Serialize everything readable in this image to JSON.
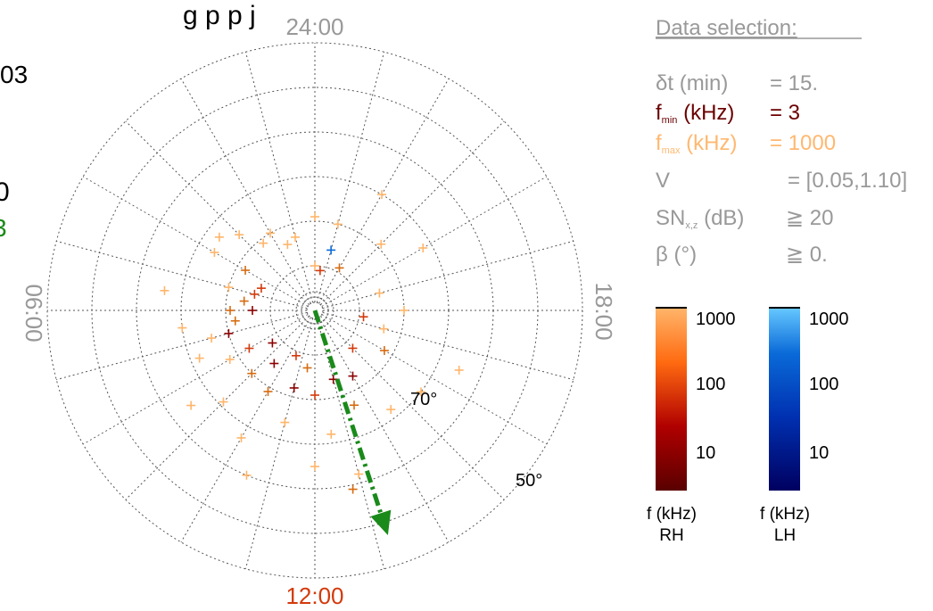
{
  "header": {
    "title_fragment": "g   p p  j",
    "left_fragment_1": "03",
    "left_fragment_2": "0",
    "left_fragment_3": "3"
  },
  "colors": {
    "rh_dark": "#5a0000",
    "rh_mid": "#d33a0c",
    "rh_light": "#ffb56a",
    "lh_dark": "#000060",
    "lh_mid": "#0a6ad8",
    "lh_light": "#66c8ff",
    "fmin_label": "#6b0000",
    "fmax_label": "#ffb870",
    "grey_text": "#999999",
    "arrow": "#1a8a1a",
    "noon_label": "#d33a0c"
  },
  "chart_data": {
    "type": "scatter",
    "projection": "polar dial plot, radius = colatitude",
    "hour_labels": {
      "top": "24:00",
      "left": "06:00",
      "right": "18:00",
      "bottom": "12:00"
    },
    "latitude_labels": [
      "70°",
      "50°"
    ],
    "latitude_circles_deg": [
      80,
      70,
      60,
      50,
      40,
      30
    ],
    "grid": true,
    "points": [
      {
        "x": 24,
        "y": 80,
        "c": "#ffb56a"
      },
      {
        "x": 24,
        "y": 69,
        "c": "#ffb56a"
      },
      {
        "x": 23,
        "y": 70,
        "c": "#ffb56a"
      },
      {
        "x": 22,
        "y": 79,
        "c": "#d66b10"
      },
      {
        "x": 23.5,
        "y": 81,
        "c": "#d33a0c"
      },
      {
        "x": 1,
        "y": 73,
        "c": "#ffb56a"
      },
      {
        "x": 1.5,
        "y": 74,
        "c": "#ffb56a"
      },
      {
        "x": 2,
        "y": 70,
        "c": "#ffb56a"
      },
      {
        "x": 2.5,
        "y": 71,
        "c": "#ffb56a"
      },
      {
        "x": 3,
        "y": 66,
        "c": "#ffb56a"
      },
      {
        "x": 3.5,
        "y": 63,
        "c": "#ffb56a"
      },
      {
        "x": 4,
        "y": 64,
        "c": "#ffb56a"
      },
      {
        "x": 4,
        "y": 72,
        "c": "#d66b10"
      },
      {
        "x": 4.5,
        "y": 77,
        "c": "#d33a0c"
      },
      {
        "x": 5,
        "y": 70,
        "c": "#ffb56a"
      },
      {
        "x": 5,
        "y": 76,
        "c": "#d33a0c"
      },
      {
        "x": 5.5,
        "y": 74,
        "c": "#d66b10"
      },
      {
        "x": 6,
        "y": 71,
        "c": "#d66b10"
      },
      {
        "x": 6,
        "y": 76,
        "c": "#8b0000"
      },
      {
        "x": 6.5,
        "y": 72,
        "c": "#d66b10"
      },
      {
        "x": 7,
        "y": 70,
        "c": "#8b0000"
      },
      {
        "x": 7,
        "y": 66,
        "c": "#ffb56a"
      },
      {
        "x": 7.5,
        "y": 62,
        "c": "#ffb56a"
      },
      {
        "x": 8,
        "y": 73,
        "c": "#d33a0c"
      },
      {
        "x": 8,
        "y": 68,
        "c": "#ffb56a"
      },
      {
        "x": 8.5,
        "y": 78,
        "c": "#8b0000"
      },
      {
        "x": 9,
        "y": 70,
        "c": "#d66b10"
      },
      {
        "x": 9,
        "y": 61,
        "c": "#ffb56a"
      },
      {
        "x": 9.5,
        "y": 75,
        "c": "#8b0000"
      },
      {
        "x": 10,
        "y": 69,
        "c": "#d66b10"
      },
      {
        "x": 10,
        "y": 57,
        "c": "#ffb56a"
      },
      {
        "x": 10.5,
        "y": 79,
        "c": "#d33a0c"
      },
      {
        "x": 11,
        "y": 72,
        "c": "#8b0000"
      },
      {
        "x": 11,
        "y": 64,
        "c": "#ffb56a"
      },
      {
        "x": 11.5,
        "y": 77,
        "c": "#d66b10"
      },
      {
        "x": 12,
        "y": 71,
        "c": "#d33a0c"
      },
      {
        "x": 12,
        "y": 55,
        "c": "#ffb56a"
      },
      {
        "x": 12.5,
        "y": 62,
        "c": "#ffb56a"
      },
      {
        "x": 13,
        "y": 74,
        "c": "#8b0000"
      },
      {
        "x": 13,
        "y": 52,
        "c": "#ffb56a"
      },
      {
        "x": 13.5,
        "y": 67,
        "c": "#d66b10"
      },
      {
        "x": 14,
        "y": 73,
        "c": "#8b0000"
      },
      {
        "x": 14.5,
        "y": 62,
        "c": "#ffb56a"
      },
      {
        "x": 15,
        "y": 78,
        "c": "#d33a0c"
      },
      {
        "x": 15.5,
        "y": 60,
        "c": "#ffb56a"
      },
      {
        "x": 16,
        "y": 72,
        "c": "#d66b10"
      },
      {
        "x": 16.5,
        "y": 55,
        "c": "#ffb56a"
      },
      {
        "x": 17,
        "y": 74,
        "c": "#ffb56a"
      },
      {
        "x": 17.5,
        "y": 79,
        "c": "#d33a0c"
      },
      {
        "x": 18,
        "y": 70,
        "c": "#ffb56a"
      },
      {
        "x": 19,
        "y": 75,
        "c": "#ffb56a"
      },
      {
        "x": 20,
        "y": 62,
        "c": "#ffb56a"
      },
      {
        "x": 21,
        "y": 69,
        "c": "#ffb56a"
      },
      {
        "x": 22,
        "y": 60,
        "c": "#ffb56a"
      },
      {
        "x": 23,
        "y": 76,
        "c": "#0a6ad8"
      },
      {
        "x": 12.8,
        "y": 49,
        "c": "#d66b10"
      },
      {
        "x": 6.5,
        "y": 60,
        "c": "#ffb56a"
      },
      {
        "x": 5.5,
        "y": 56,
        "c": "#ffb56a"
      },
      {
        "x": 8.5,
        "y": 55,
        "c": "#ffb56a"
      },
      {
        "x": 10.5,
        "y": 50,
        "c": "#ffb56a"
      }
    ],
    "arrow": {
      "from_hour": 12,
      "from_lat": 90,
      "to_hour": 13.2,
      "to_lat": 37
    }
  },
  "selection": {
    "title": "Data selection:",
    "dt_label": "δt (min)",
    "dt_value": "= 15.",
    "fmin_sym": "f",
    "fmin_sub": "min",
    "fmin_unit": " (kHz)",
    "fmin_value": "= 3",
    "fmax_sym": "f",
    "fmax_sub": "max",
    "fmax_unit": " (kHz)",
    "fmax_value": "= 1000",
    "v_label": "V",
    "v_value": "= [0.05,1.10]",
    "sn_sym": "SN",
    "sn_sub": "x,z",
    "sn_unit": " (dB)",
    "sn_value": "≧ 20",
    "beta_label": "β (°)",
    "beta_value": "≧ 0."
  },
  "colorbars": {
    "rh": {
      "ticks": [
        "1000",
        "100",
        "10"
      ],
      "label_1": "f (kHz)",
      "label_2": "RH"
    },
    "lh": {
      "ticks": [
        "1000",
        "100",
        "10"
      ],
      "label_1": "f (kHz)",
      "label_2": "LH"
    }
  }
}
